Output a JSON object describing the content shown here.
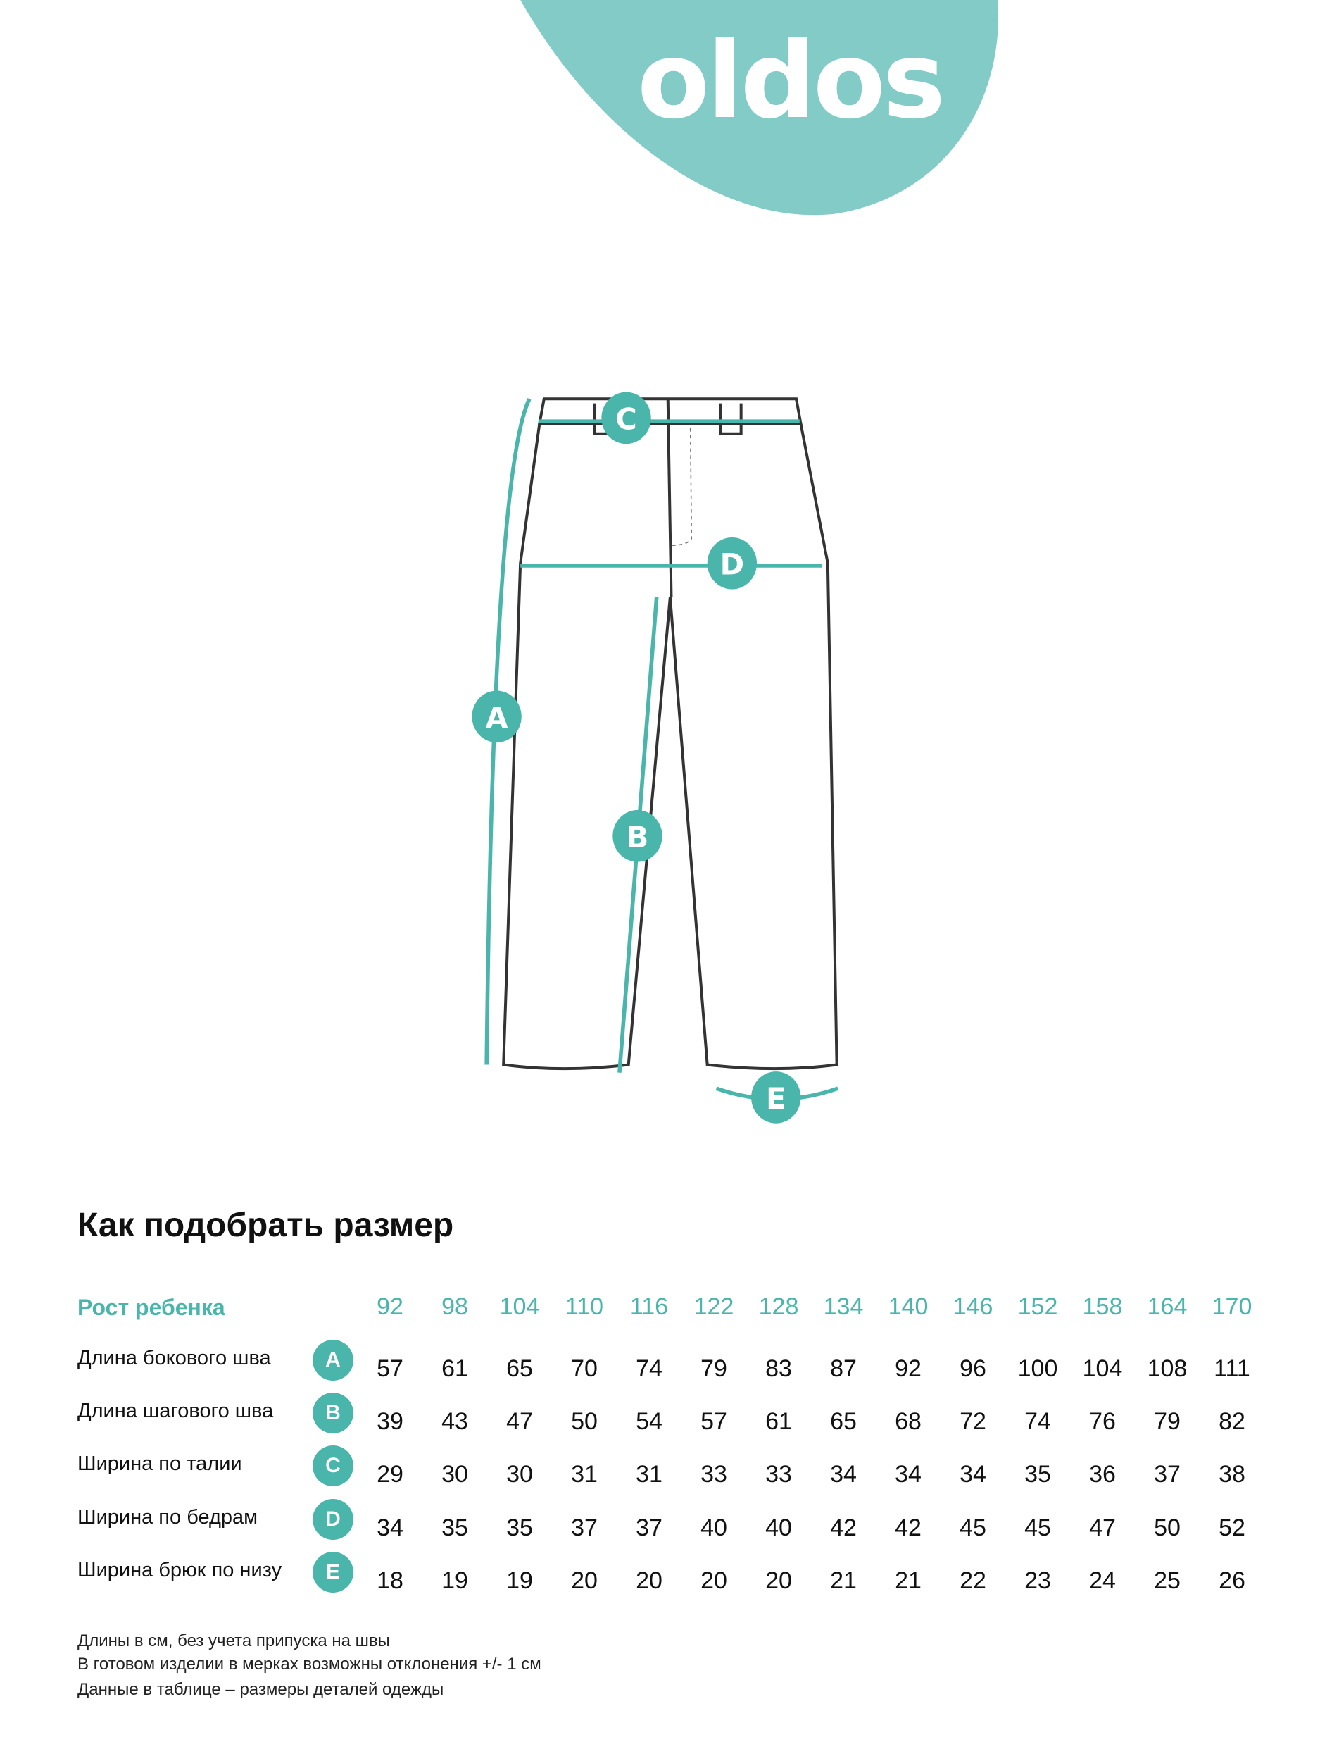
{
  "brand": {
    "logo": "oldos",
    "accent": "#4ab5aa",
    "blob": "#82cbc7"
  },
  "diagram": {
    "markers": [
      "A",
      "B",
      "C",
      "D",
      "E"
    ]
  },
  "title": "Как подобрать размер",
  "table": {
    "header_label": "Рост ребенка",
    "heights": [
      "92",
      "98",
      "104",
      "110",
      "116",
      "122",
      "128",
      "134",
      "140",
      "146",
      "152",
      "158",
      "164",
      "170"
    ],
    "rows": [
      {
        "label": "Длина бокового шва",
        "marker": "A",
        "values": [
          "57",
          "61",
          "65",
          "70",
          "74",
          "79",
          "83",
          "87",
          "92",
          "96",
          "100",
          "104",
          "108",
          "111"
        ]
      },
      {
        "label": "Длина шагового шва",
        "marker": "B",
        "values": [
          "39",
          "43",
          "47",
          "50",
          "54",
          "57",
          "61",
          "65",
          "68",
          "72",
          "74",
          "76",
          "79",
          "82"
        ]
      },
      {
        "label": "Ширина по талии",
        "marker": "C",
        "values": [
          "29",
          "30",
          "30",
          "31",
          "31",
          "33",
          "33",
          "34",
          "34",
          "34",
          "35",
          "36",
          "37",
          "38"
        ]
      },
      {
        "label": "Ширина по бедрам",
        "marker": "D",
        "values": [
          "34",
          "35",
          "35",
          "37",
          "37",
          "40",
          "40",
          "42",
          "42",
          "45",
          "45",
          "47",
          "50",
          "52"
        ]
      },
      {
        "label": "Ширина брюк по низу",
        "marker": "E",
        "values": [
          "18",
          "19",
          "19",
          "20",
          "20",
          "20",
          "20",
          "21",
          "21",
          "22",
          "23",
          "24",
          "25",
          "26"
        ]
      }
    ]
  },
  "notes": [
    "Длины в см, без учета припуска на швы",
    "В готовом изделии в мерках возможны отклонения +/- 1 см",
    "Данные в таблице – размеры деталей одежды"
  ]
}
